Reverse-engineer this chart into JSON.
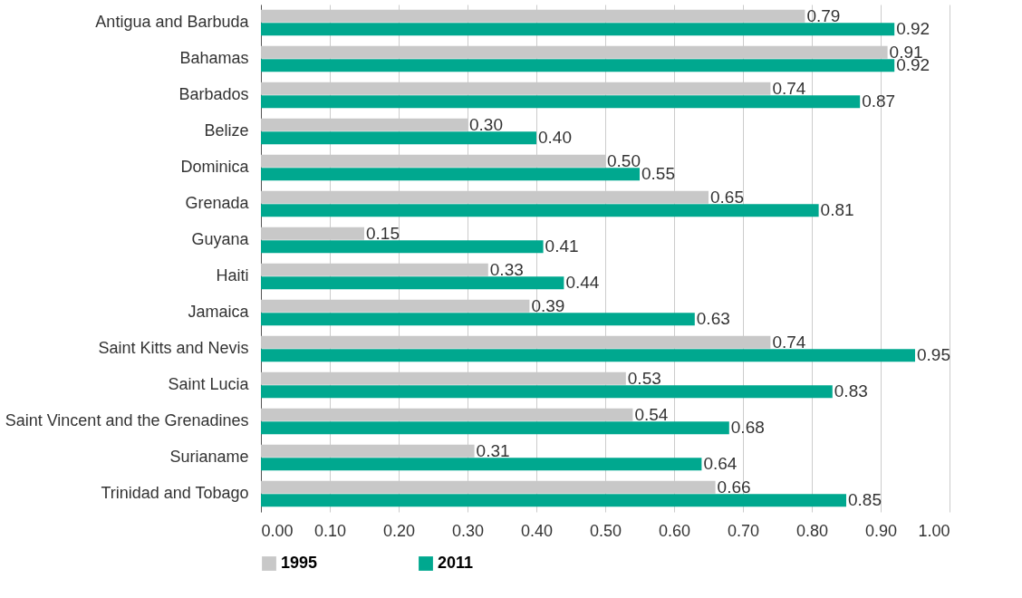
{
  "chart_data": {
    "type": "bar",
    "orientation": "horizontal",
    "categories": [
      "Antigua and Barbuda",
      "Bahamas",
      "Barbados",
      "Belize",
      "Dominica",
      "Grenada",
      "Guyana",
      "Haiti",
      "Jamaica",
      "Saint Kitts and Nevis",
      "Saint Lucia",
      "Saint Vincent and the Grenadines",
      "Surianame",
      "Trinidad and Tobago"
    ],
    "series": [
      {
        "name": "1995",
        "color": "#c8c8c8",
        "values": [
          0.79,
          0.91,
          0.74,
          0.3,
          0.5,
          0.65,
          0.15,
          0.33,
          0.39,
          0.74,
          0.53,
          0.54,
          0.31,
          0.66
        ],
        "value_labels": [
          "0.79",
          "0.91",
          "0.74",
          "0.30",
          "0.50",
          "0.65",
          "0.15",
          "0.33",
          "0.39",
          "0.74",
          "0.53",
          "0.54",
          "0.31",
          "0.66"
        ]
      },
      {
        "name": "2011",
        "color": "#00a88f",
        "values": [
          0.92,
          0.92,
          0.87,
          0.4,
          0.55,
          0.81,
          0.41,
          0.44,
          0.63,
          0.95,
          0.83,
          0.68,
          0.64,
          0.85
        ],
        "value_labels": [
          "0.92",
          "0.92",
          "0.87",
          "0.40",
          "0.55",
          "0.81",
          "0.41",
          "0.44",
          "0.63",
          "0.95",
          "0.83",
          "0.68",
          "0.64",
          "0.85"
        ]
      }
    ],
    "xlim": [
      0,
      1
    ],
    "xticks": [
      {
        "value": 0,
        "label": "0.00"
      },
      {
        "value": 0.1,
        "label": "0.10"
      },
      {
        "value": 0.2,
        "label": "0.20"
      },
      {
        "value": 0.3,
        "label": "0.30"
      },
      {
        "value": 0.4,
        "label": "0.40"
      },
      {
        "value": 0.5,
        "label": "0.50"
      },
      {
        "value": 0.6,
        "label": "0.60"
      },
      {
        "value": 0.7,
        "label": "0.70"
      },
      {
        "value": 0.8,
        "label": "0.80"
      },
      {
        "value": 0.9,
        "label": "0.90"
      },
      {
        "value": 1,
        "label": "1.00"
      }
    ],
    "grid": "x",
    "legend": "bottom"
  }
}
